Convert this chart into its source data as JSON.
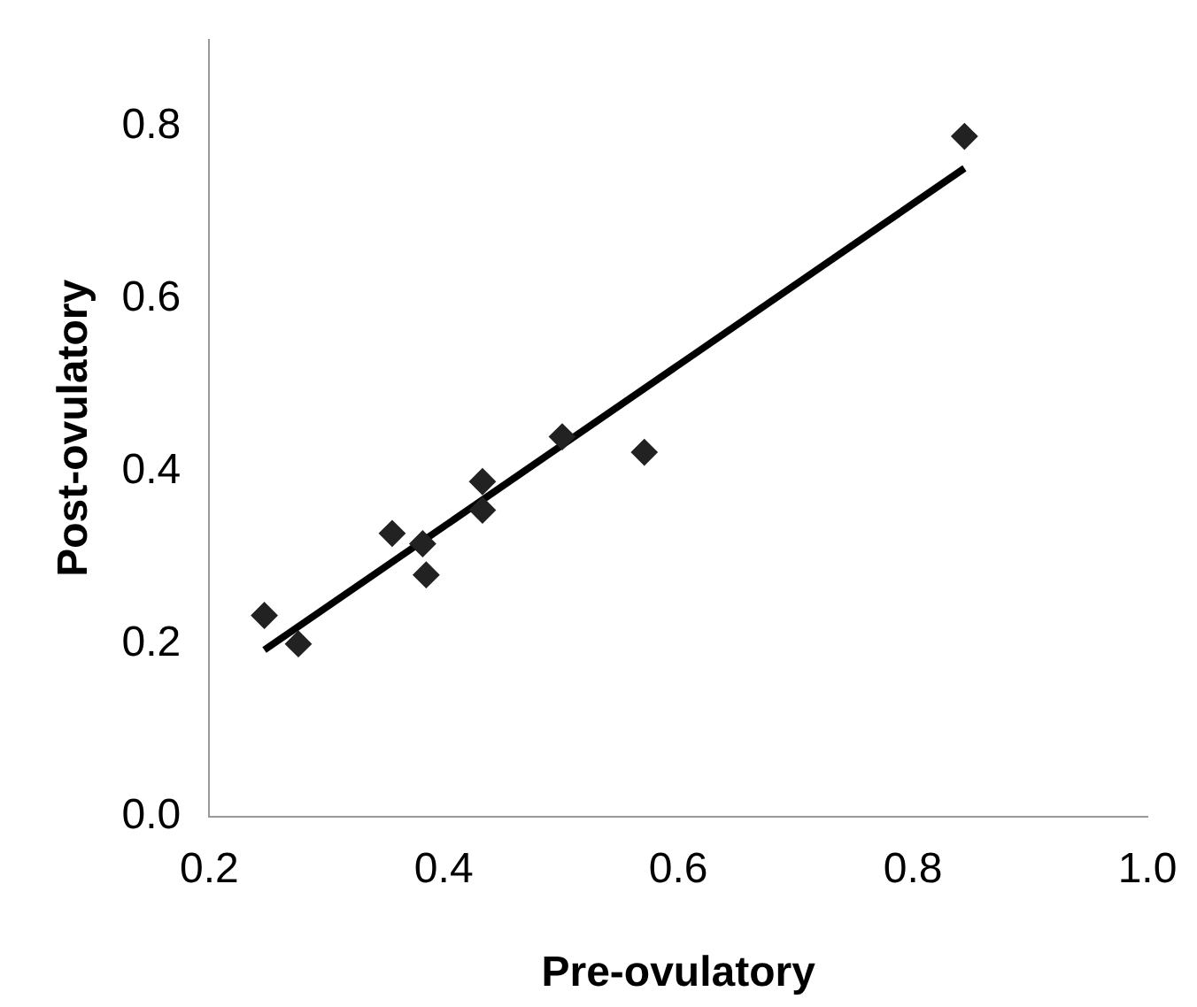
{
  "chart_data": {
    "type": "scatter",
    "xlabel": "Pre-ovulatory",
    "ylabel": "Post-ovulatory",
    "xlim": [
      0.2,
      1.0
    ],
    "xticks": [
      {
        "value": 0.2,
        "label": "0.2"
      },
      {
        "value": 0.4,
        "label": "0.4"
      },
      {
        "value": 0.6,
        "label": "0.6"
      },
      {
        "value": 0.8,
        "label": "0.8"
      },
      {
        "value": 1.0,
        "label": "1.0"
      }
    ],
    "ylim": [
      0,
      0.9
    ],
    "yticks": [
      {
        "value": 0,
        "label": "0.0"
      },
      {
        "value": 0.2,
        "label": "0.2"
      },
      {
        "value": 0.4,
        "label": "0.4"
      },
      {
        "value": 0.6,
        "label": "0.6"
      },
      {
        "value": 0.8,
        "label": "0.8"
      }
    ],
    "grid": false,
    "legend": false,
    "marker": "diamond",
    "series": [
      {
        "type": "scatter",
        "color": "#222222",
        "x": [
          0.247,
          0.276,
          0.356,
          0.382,
          0.385,
          0.433,
          0.433,
          0.501,
          0.571,
          0.844
        ],
        "values": [
          0.233,
          0.2,
          0.328,
          0.316,
          0.28,
          0.388,
          0.355,
          0.44,
          0.422,
          0.788
        ]
      },
      {
        "type": "line",
        "color": "#000000",
        "line_style": "solid",
        "marker": "none",
        "x": [
          0.247,
          0.844
        ],
        "values": [
          0.193,
          0.751
        ]
      }
    ]
  }
}
